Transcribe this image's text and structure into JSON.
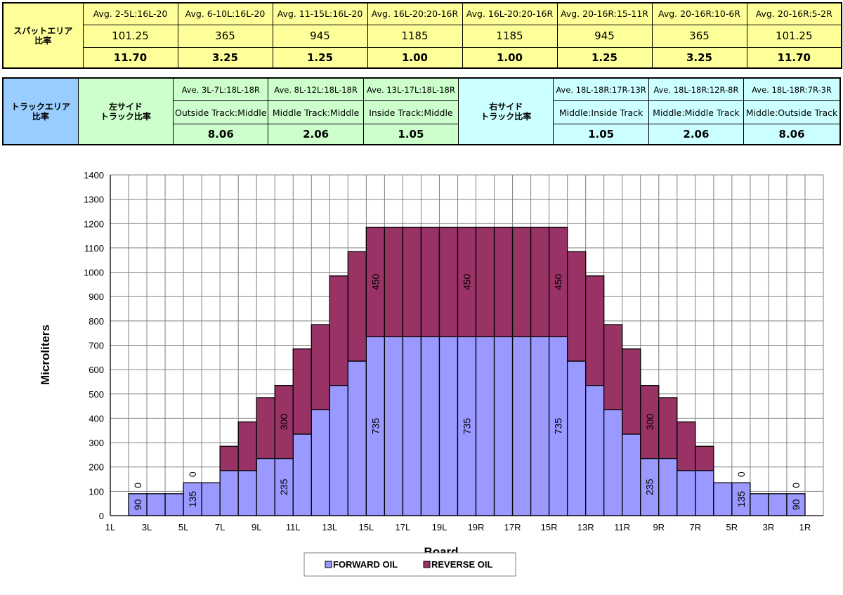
{
  "spot_table": {
    "row_title_lines": [
      "スパットエリア",
      "比率"
    ],
    "headers": [
      "Avg. 2-5L:16L-20",
      "Avg. 6-10L:16L-20",
      "Avg. 11-15L:16L-20",
      "Avg. 16L-20:20-16R",
      "Avg. 16L-20:20-16R",
      "Avg. 20-16R:15-11R",
      "Avg. 20-16R:10-6R",
      "Avg. 20-16R:5-2R"
    ],
    "values": [
      "101.25",
      "365",
      "945",
      "1185",
      "1185",
      "945",
      "365",
      "101.25"
    ],
    "ratios": [
      "11.70",
      "3.25",
      "1.25",
      "1.00",
      "1.00",
      "1.25",
      "3.25",
      "11.70"
    ]
  },
  "track_table": {
    "row_title_lines": [
      "トラックエリア",
      "比率"
    ],
    "left_title_lines": [
      "左サイド",
      "トラック比率"
    ],
    "right_title_lines": [
      "右サイド",
      "トラック比率"
    ],
    "left_headers": [
      "Ave. 3L-7L:18L-18R",
      "Ave. 8L-12L:18L-18R",
      "Ave. 13L-17L:18L-18R"
    ],
    "left_labels": [
      "Outside Track:Middle",
      "Middle Track:Middle",
      "Inside Track:Middle"
    ],
    "left_ratios": [
      "8.06",
      "2.06",
      "1.05"
    ],
    "right_headers": [
      "Ave. 18L-18R:17R-13R",
      "Ave. 18L-18R:12R-8R",
      "Ave. 18L-18R:7R-3R"
    ],
    "right_labels": [
      "Middle:Inside Track",
      "Middle:Middle Track",
      "Middle:Outside Track"
    ],
    "right_ratios": [
      "1.05",
      "2.06",
      "8.06"
    ]
  },
  "chart_data": {
    "type": "bar",
    "stacked": true,
    "categories": [
      "1L",
      "2L",
      "3L",
      "4L",
      "5L",
      "6L",
      "7L",
      "8L",
      "9L",
      "10L",
      "11L",
      "12L",
      "13L",
      "14L",
      "15L",
      "16L",
      "17L",
      "18L",
      "19L",
      "20",
      "19R",
      "18R",
      "17R",
      "16R",
      "15R",
      "14R",
      "13R",
      "12R",
      "11R",
      "10R",
      "9R",
      "8R",
      "7R",
      "6R",
      "5R",
      "4R",
      "3R",
      "2R",
      "1R"
    ],
    "tick_labels": [
      "1L",
      "3L",
      "5L",
      "7L",
      "9L",
      "11L",
      "13L",
      "15L",
      "17L",
      "19L",
      "19R",
      "17R",
      "15R",
      "13R",
      "11R",
      "9R",
      "7R",
      "5R",
      "3R",
      "1R"
    ],
    "series": [
      {
        "name": "FORWARD OIL",
        "color": "#9999ff",
        "values": [
          0,
          90,
          90,
          90,
          135,
          135,
          185,
          185,
          235,
          235,
          335,
          435,
          535,
          635,
          735,
          735,
          735,
          735,
          735,
          735,
          735,
          735,
          735,
          735,
          735,
          635,
          535,
          435,
          335,
          235,
          235,
          185,
          185,
          135,
          135,
          90,
          90,
          90,
          0
        ]
      },
      {
        "name": "REVERSE OIL",
        "color": "#993366",
        "values": [
          0,
          0,
          0,
          0,
          0,
          0,
          100,
          200,
          250,
          300,
          350,
          350,
          450,
          450,
          450,
          450,
          450,
          450,
          450,
          450,
          450,
          450,
          450,
          450,
          450,
          450,
          450,
          350,
          350,
          300,
          250,
          200,
          100,
          0,
          0,
          0,
          0,
          0,
          0
        ]
      }
    ],
    "data_labels": [
      {
        "category": "2L",
        "series": "FORWARD OIL",
        "text": "90"
      },
      {
        "category": "2L",
        "series": "REVERSE OIL",
        "text": "0"
      },
      {
        "category": "5L",
        "series": "FORWARD OIL",
        "text": "135"
      },
      {
        "category": "5L",
        "series": "REVERSE OIL",
        "text": "0"
      },
      {
        "category": "10L",
        "series": "FORWARD OIL",
        "text": "235"
      },
      {
        "category": "10L",
        "series": "REVERSE OIL",
        "text": "300"
      },
      {
        "category": "15L",
        "series": "FORWARD OIL",
        "text": "735"
      },
      {
        "category": "15L",
        "series": "REVERSE OIL",
        "text": "450"
      },
      {
        "category": "20",
        "series": "FORWARD OIL",
        "text": "735"
      },
      {
        "category": "20",
        "series": "REVERSE OIL",
        "text": "450"
      },
      {
        "category": "15R",
        "series": "FORWARD OIL",
        "text": "735"
      },
      {
        "category": "15R",
        "series": "REVERSE OIL",
        "text": "450"
      },
      {
        "category": "10R",
        "series": "FORWARD OIL",
        "text": "235"
      },
      {
        "category": "10R",
        "series": "REVERSE OIL",
        "text": "300"
      },
      {
        "category": "5R",
        "series": "FORWARD OIL",
        "text": "135"
      },
      {
        "category": "5R",
        "series": "REVERSE OIL",
        "text": "0"
      },
      {
        "category": "2R",
        "series": "FORWARD OIL",
        "text": "90"
      },
      {
        "category": "2R",
        "series": "REVERSE OIL",
        "text": "0"
      }
    ],
    "xlabel": "Board",
    "ylabel": "Microliters",
    "ylim": [
      0,
      1400
    ],
    "y_ticks": [
      0,
      100,
      200,
      300,
      400,
      500,
      600,
      700,
      800,
      900,
      1000,
      1100,
      1200,
      1300,
      1400
    ],
    "grid": true,
    "legend": "bottom-center"
  }
}
